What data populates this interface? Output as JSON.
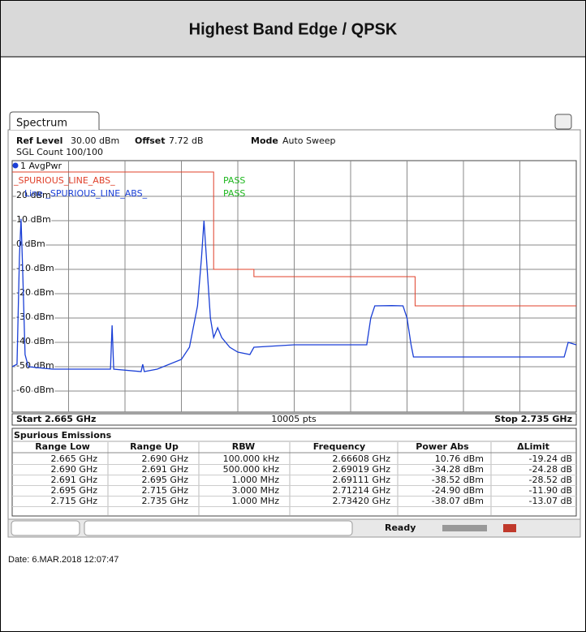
{
  "header": {
    "title": "Highest Band Edge / QPSK"
  },
  "screen": {
    "tab": "Spectrum",
    "settings": [
      {
        "label": "Ref Level",
        "value": "30.00 dBm"
      },
      {
        "label": "Offset",
        "value": "7.72 dB"
      },
      {
        "label": "Mode",
        "value": "Auto Sweep"
      }
    ],
    "sgl_count": "SGL Count 100/100",
    "limit_checks": [
      {
        "name": "_SPURIOUS_LINE_ABS_",
        "result": "PASS"
      },
      {
        "name": "Line _SPURIOUS_LINE_ABS_",
        "result": "PASS"
      }
    ],
    "start_label": "Start 2.665 GHz",
    "points_label": "10005 pts",
    "stop_label": "Stop 2.735 GHz",
    "status": "Ready"
  },
  "chart_data": {
    "type": "line",
    "xlim": [
      2.665,
      2.735
    ],
    "ylim": [
      -70,
      30
    ],
    "yticks": [
      {
        "value": 20,
        "label": "20 dBm"
      },
      {
        "value": 10,
        "label": "10 dBm"
      },
      {
        "value": 0,
        "label": "0 dBm"
      },
      {
        "value": -10,
        "label": "-10 dBm"
      },
      {
        "value": -20,
        "label": "-20 dBm"
      },
      {
        "value": -30,
        "label": "-30 dBm"
      },
      {
        "value": -40,
        "label": "-40 dBm"
      },
      {
        "value": -50,
        "label": "-50 dBm"
      },
      {
        "value": -60,
        "label": "-60 dBm"
      }
    ],
    "grid": true,
    "series": [
      {
        "name": "1 AvgPwr",
        "color": "#1a3fd6",
        "x": [
          2.665,
          2.6656,
          2.6659,
          2.6661,
          2.6663,
          2.6666,
          2.667,
          2.67,
          2.6772,
          2.6774,
          2.6776,
          2.681,
          2.6812,
          2.6814,
          2.683,
          2.686,
          2.687,
          2.688,
          2.6885,
          2.6888,
          2.6891,
          2.6896,
          2.69,
          2.6905,
          2.691,
          2.692,
          2.693,
          2.6945,
          2.695,
          2.7,
          2.705,
          2.709,
          2.7095,
          2.71,
          2.7121,
          2.7135,
          2.714,
          2.7145,
          2.7148,
          2.725,
          2.7335,
          2.734,
          2.735
        ],
        "values": [
          -50,
          -49,
          -5,
          10.76,
          -10,
          -45,
          -50,
          -51,
          -51,
          -33,
          -51,
          -52,
          -49,
          -52,
          -51,
          -47,
          -42,
          -25,
          -5,
          10,
          -5,
          -30,
          -38,
          -34,
          -38,
          -42,
          -44,
          -45,
          -42,
          -41,
          -41,
          -41,
          -30,
          -25,
          -24.9,
          -25,
          -30,
          -41,
          -46,
          -46,
          -46,
          -40,
          -41
        ]
      }
    ],
    "limit_line": {
      "name": "_SPURIOUS_LINE_ABS_",
      "color": "#e0402a",
      "x": [
        2.665,
        2.69,
        2.69,
        2.695,
        2.695,
        2.715,
        2.715,
        2.735
      ],
      "values": [
        30,
        30,
        -10,
        -10,
        -13,
        -13,
        -25,
        -25
      ]
    }
  },
  "table": {
    "title": "Spurious Emissions",
    "columns": [
      "Range Low",
      "Range Up",
      "RBW",
      "Frequency",
      "Power Abs",
      "ΔLimit"
    ],
    "rows": [
      [
        "2.665 GHz",
        "2.690 GHz",
        "100.000 kHz",
        "2.66608 GHz",
        "10.76 dBm",
        "-19.24 dB"
      ],
      [
        "2.690 GHz",
        "2.691 GHz",
        "500.000 kHz",
        "2.69019 GHz",
        "-34.28 dBm",
        "-24.28 dB"
      ],
      [
        "2.691 GHz",
        "2.695 GHz",
        "1.000 MHz",
        "2.69111 GHz",
        "-38.52 dBm",
        "-28.52 dB"
      ],
      [
        "2.695 GHz",
        "2.715 GHz",
        "3.000 MHz",
        "2.71214 GHz",
        "-24.90 dBm",
        "-11.90 dB"
      ],
      [
        "2.715 GHz",
        "2.735 GHz",
        "1.000 MHz",
        "2.73420 GHz",
        "-38.07 dBm",
        "-13.07 dB"
      ]
    ]
  },
  "footer": {
    "date": "Date: 6.MAR.2018  12:07:47"
  }
}
